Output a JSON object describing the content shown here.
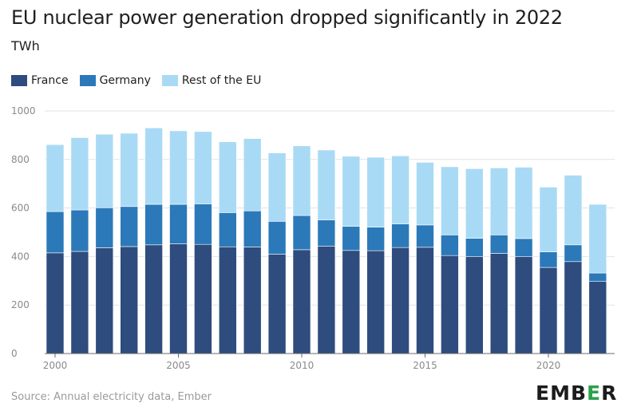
{
  "chart_data": {
    "type": "bar",
    "stacked": true,
    "title": "EU nuclear power generation dropped significantly in 2022",
    "subtitle": "TWh",
    "ylim": [
      0,
      1000
    ],
    "yticks": [
      0,
      200,
      400,
      600,
      800,
      1000
    ],
    "xticks": [
      2000,
      2005,
      2010,
      2015,
      2020
    ],
    "grid": true,
    "legend_position": "top-left",
    "categories": [
      2000,
      2001,
      2002,
      2003,
      2004,
      2005,
      2006,
      2007,
      2008,
      2009,
      2010,
      2011,
      2012,
      2013,
      2014,
      2015,
      2016,
      2017,
      2018,
      2019,
      2020,
      2021,
      2022
    ],
    "series": [
      {
        "name": "France",
        "color": "#2e4c7e",
        "values": [
          415,
          421,
          436,
          441,
          448,
          452,
          450,
          440,
          439,
          410,
          428,
          443,
          425,
          424,
          437,
          438,
          404,
          399,
          413,
          399,
          355,
          379,
          297
        ]
      },
      {
        "name": "Germany",
        "color": "#2b79b9",
        "values": [
          170,
          171,
          165,
          165,
          167,
          163,
          167,
          141,
          149,
          135,
          141,
          108,
          99,
          97,
          97,
          92,
          85,
          76,
          76,
          75,
          64,
          69,
          35
        ]
      },
      {
        "name": "Rest of the EU",
        "color": "#a9daf5",
        "values": [
          276,
          298,
          303,
          302,
          315,
          303,
          298,
          292,
          298,
          282,
          287,
          288,
          289,
          288,
          281,
          258,
          281,
          287,
          276,
          294,
          267,
          287,
          283
        ]
      }
    ]
  },
  "footer": {
    "source": "Source: Annual electricity data, Ember",
    "logo_prefix": "EMB",
    "logo_accent": "E",
    "logo_suffix": "R"
  }
}
